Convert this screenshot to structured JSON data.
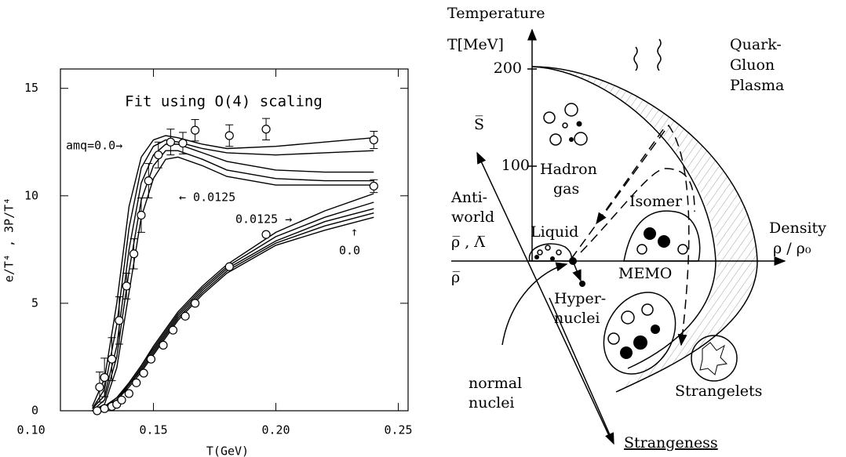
{
  "chart_data": {
    "type": "line",
    "title": "Fit using O(4) scaling",
    "xlabel": "T(GeV)",
    "ylabel": "e/T⁴ , 3P/T⁴",
    "xlim": [
      0.112,
      0.254
    ],
    "ylim": [
      0,
      15.9
    ],
    "xticks": [
      {
        "value": 0.1,
        "label": "0.10"
      },
      0.15,
      {
        "value": 0.2,
        "label": "0.20"
      },
      0.25
    ],
    "yticks": [
      0,
      5,
      10,
      15
    ],
    "annotations": [
      "amq=0.0→",
      "← 0.0125",
      "0.0125 →",
      "↑",
      "0.0"
    ],
    "x": [
      0.125,
      0.13,
      0.135,
      0.14,
      0.145,
      0.15,
      0.155,
      0.16,
      0.17,
      0.18,
      0.2,
      0.22,
      0.24
    ],
    "series": [
      {
        "type": "line",
        "color": "#000",
        "values": [
          0.2,
          1.5,
          5,
          9.5,
          11.8,
          12.6,
          12.8,
          12.7,
          12.4,
          12.2,
          12.3,
          12.5,
          12.7
        ]
      },
      {
        "type": "line",
        "color": "#000",
        "values": [
          0.1,
          1.0,
          4,
          8.5,
          11.3,
          12.3,
          12.6,
          12.5,
          12.2,
          12.0,
          11.9,
          12.0,
          12.1
        ]
      },
      {
        "type": "line",
        "color": "#000",
        "values": [
          0.1,
          0.7,
          3,
          7.5,
          10.6,
          11.9,
          12.4,
          12.4,
          12.0,
          11.6,
          11.2,
          11.1,
          11.1
        ]
      },
      {
        "type": "line",
        "color": "#000",
        "values": [
          0,
          0.5,
          2.5,
          6.5,
          9.8,
          11.4,
          12.1,
          12.1,
          11.7,
          11.2,
          10.8,
          10.7,
          10.7
        ]
      },
      {
        "type": "line",
        "color": "#000",
        "values": [
          0,
          0.3,
          2,
          5.5,
          9,
          10.8,
          11.7,
          11.8,
          11.4,
          10.9,
          10.5,
          10.5,
          10.5
        ]
      },
      {
        "type": "line",
        "color": "#000",
        "values": [
          0,
          0.2,
          0.6,
          1.3,
          2.1,
          3.0,
          3.8,
          4.6,
          5.8,
          6.8,
          8.3,
          9.3,
          10.1
        ]
      },
      {
        "type": "line",
        "color": "#000",
        "values": [
          0,
          0.2,
          0.6,
          1.3,
          2.1,
          2.9,
          3.7,
          4.5,
          5.7,
          6.7,
          8.1,
          9.0,
          9.7
        ]
      },
      {
        "type": "line",
        "color": "#000",
        "values": [
          0,
          0.2,
          0.6,
          1.2,
          2.0,
          2.8,
          3.6,
          4.4,
          5.6,
          6.6,
          7.9,
          8.8,
          9.4
        ]
      },
      {
        "type": "line",
        "color": "#000",
        "values": [
          0,
          0.2,
          0.5,
          1.2,
          1.9,
          2.7,
          3.5,
          4.3,
          5.5,
          6.5,
          7.8,
          8.6,
          9.2
        ]
      },
      {
        "type": "line",
        "color": "#000",
        "values": [
          0,
          0.1,
          0.5,
          1.1,
          1.8,
          2.6,
          3.4,
          4.2,
          5.4,
          6.4,
          7.7,
          8.4,
          9.0
        ]
      },
      {
        "type": "scatter",
        "color": "#000",
        "x": [
          0.128,
          0.13,
          0.133,
          0.136,
          0.139,
          0.142,
          0.145,
          0.148,
          0.152,
          0.157,
          0.162,
          0.167,
          0.181,
          0.196,
          0.24,
          0.24
        ],
        "values": [
          1.1,
          1.55,
          2.4,
          4.2,
          5.8,
          7.3,
          9.1,
          10.7,
          11.9,
          12.5,
          12.45,
          13.05,
          12.8,
          13.1,
          12.6,
          10.45
        ],
        "errors": [
          0.7,
          0.9,
          1.0,
          1.1,
          0.6,
          0.7,
          0.8,
          0.8,
          0.6,
          0.6,
          0.5,
          0.5,
          0.5,
          0.5,
          0.4,
          0.3
        ]
      },
      {
        "type": "scatter",
        "color": "#000",
        "x": [
          0.127,
          0.13,
          0.133,
          0.135,
          0.137,
          0.14,
          0.143,
          0.146,
          0.149,
          0.154,
          0.158,
          0.163,
          0.167,
          0.181,
          0.196
        ],
        "values": [
          0,
          0.1,
          0.2,
          0.3,
          0.5,
          0.8,
          1.3,
          1.75,
          2.4,
          3.05,
          3.75,
          4.4,
          5.0,
          6.7,
          8.2
        ]
      }
    ]
  },
  "diagram": {
    "temperature": "Temperature",
    "t_unit": "T[MeV]",
    "t200": "200",
    "t100": "100",
    "qgp": [
      "Quark-",
      "Gluon",
      "Plasma"
    ],
    "s_bar": "S̅",
    "hadron_gas": [
      "Hadron",
      "gas"
    ],
    "antiworld": [
      "Anti-",
      "world",
      "ρ̅ , Λ̅"
    ],
    "rho_bar": "ρ̅",
    "liquid": "Liquid",
    "isomer": "Isomer",
    "density": [
      "Density",
      "ρ / ρ₀"
    ],
    "hypernuclei": [
      "Hyper-",
      "nuclei"
    ],
    "memo": "MEMO",
    "normal_nuclei": [
      "normal",
      "nuclei"
    ],
    "strangelets": "Strangelets",
    "strangeness": "Strangeness"
  }
}
